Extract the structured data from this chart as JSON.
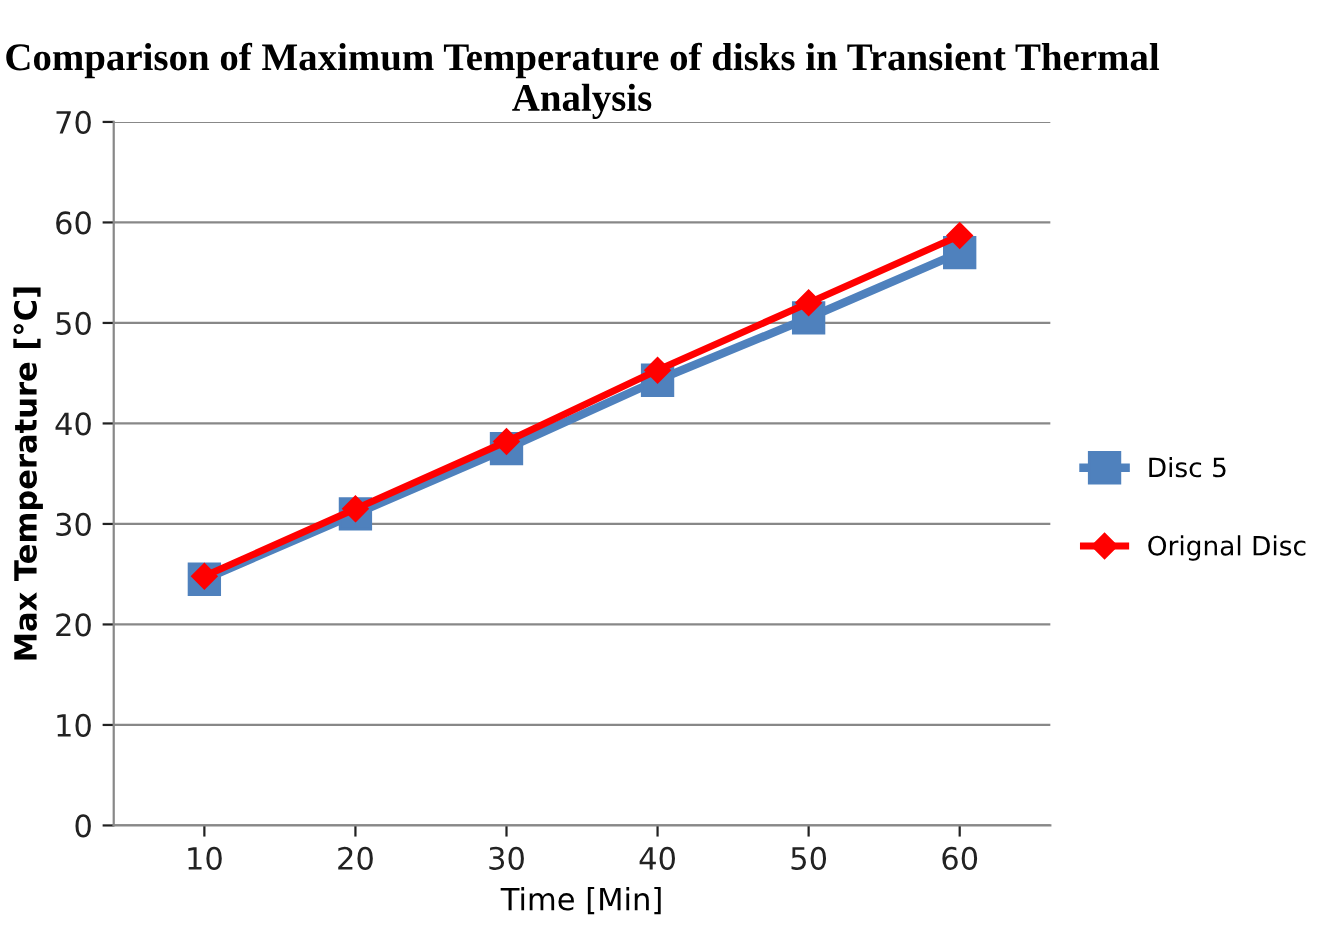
{
  "chart_data": {
    "type": "line",
    "title": "Comparison of Maximum Temperature of disks in Transient Thermal Analysis",
    "xlabel": "Time [Min]",
    "ylabel": "Max Temperature [°C]",
    "categories": [
      "10",
      "20",
      "30",
      "40",
      "50",
      "60"
    ],
    "series": [
      {
        "name": "Disc 5",
        "color": "#4f81bd",
        "marker": "square",
        "values": [
          24.5,
          31,
          37.5,
          44.3,
          50.5,
          57
        ]
      },
      {
        "name": "Orignal Disc",
        "color": "#ff0000",
        "marker": "diamond",
        "values": [
          24.8,
          31.5,
          38.2,
          45.3,
          52,
          58.7
        ]
      }
    ],
    "ylim": [
      0,
      70
    ],
    "yticks": [
      0,
      10,
      20,
      30,
      40,
      50,
      60,
      70
    ],
    "grid": "y",
    "legend": "right",
    "line_style": "solid"
  }
}
